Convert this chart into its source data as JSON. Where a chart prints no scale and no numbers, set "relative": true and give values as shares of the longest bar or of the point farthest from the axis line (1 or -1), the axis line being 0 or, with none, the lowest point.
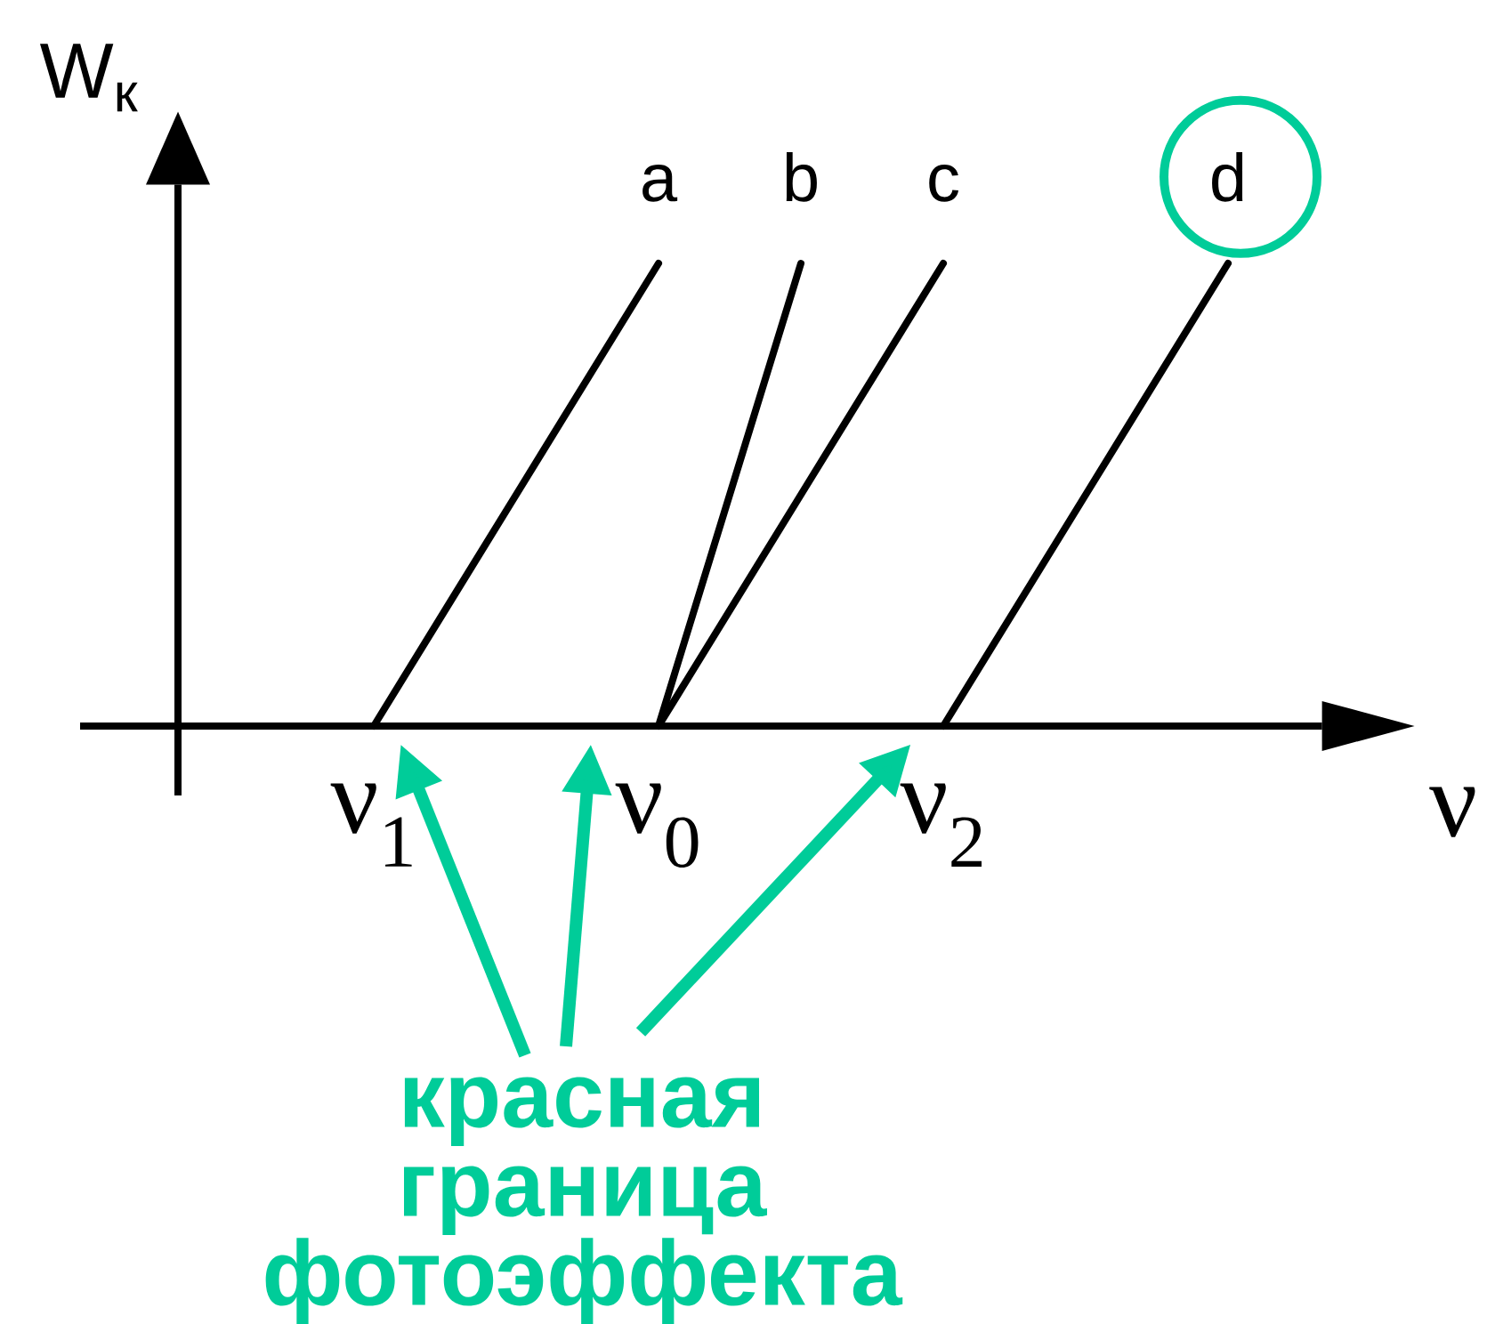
{
  "chart_data": {
    "type": "line",
    "relative": true,
    "xlabel": "ν",
    "ylabel": "W$_{к}$",
    "categories": [
      "ν$_{1}$",
      null,
      "ν$_{0}$",
      null,
      "ν$_{2}$",
      null,
      null
    ],
    "series": [
      {
        "name": "a",
        "color": "#000000",
        "values": [
          0,
          0.5,
          1,
          null,
          null,
          null,
          null
        ]
      },
      {
        "name": "b",
        "color": "#000000",
        "values": [
          null,
          null,
          0,
          1,
          null,
          null,
          null
        ]
      },
      {
        "name": "c",
        "color": "#000000",
        "values": [
          null,
          null,
          0,
          0.5,
          1,
          null,
          null
        ]
      },
      {
        "name": "d",
        "color": "#000000",
        "values": [
          null,
          null,
          null,
          null,
          0,
          0.5,
          1
        ]
      }
    ],
    "annotations": [
      "красная граница фотоэффекта"
    ]
  }
}
